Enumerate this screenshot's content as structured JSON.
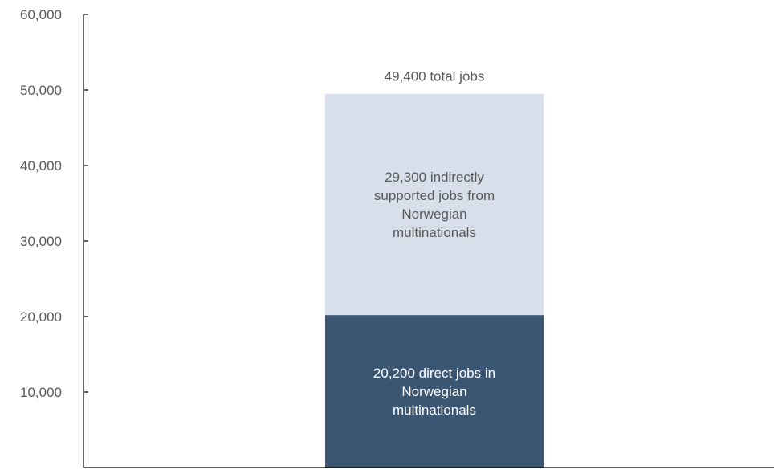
{
  "chart_data": {
    "type": "bar",
    "stacked": true,
    "categories": [
      ""
    ],
    "series": [
      {
        "values": [
          20200
        ],
        "label_lines": [
          "20,200 direct jobs in",
          "Norwegian",
          "multinationals"
        ],
        "color": "#3a5673",
        "label_color": "#ffffff"
      },
      {
        "values": [
          29300
        ],
        "label_lines": [
          "29,300 indirectly",
          "supported jobs from",
          "Norwegian",
          "multinationals"
        ],
        "color": "#d6dfea",
        "label_color": "#595959"
      }
    ],
    "total_label": "49,400 total jobs",
    "total_value": 49400,
    "ylim": [
      0,
      60000
    ],
    "yticks": [
      10000,
      20000,
      30000,
      40000,
      50000,
      60000
    ],
    "ytick_labels": [
      "10,000",
      "20,000",
      "30,000",
      "40,000",
      "50,000",
      "60,000"
    ],
    "title": "",
    "xlabel": "",
    "ylabel": "",
    "grid": false,
    "axis_color": "#000000"
  }
}
